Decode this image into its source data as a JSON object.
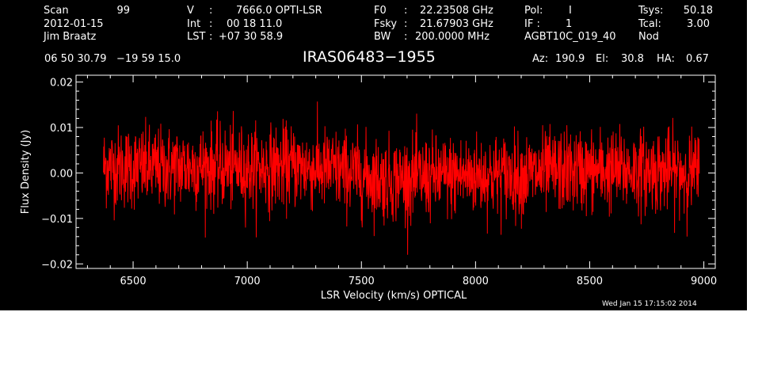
{
  "header": {
    "scan_label": "Scan",
    "scan_value": "99",
    "date": "2012-01-15",
    "observer": "Jim Braatz",
    "v_label": "V",
    "v_sep": ":",
    "v_value": "7666.0 OPTI-LSR",
    "int_label": "Int",
    "int_sep": ":",
    "int_value": "00 18 11.0",
    "lst_label": "LST",
    "lst_sep": ":",
    "lst_value": "+07 30 58.9",
    "f0_label": "F0",
    "f0_sep": ":",
    "f0_value": "22.23508 GHz",
    "fsky_label": "Fsky",
    "fsky_sep": ":",
    "fsky_value": "21.67903 GHz",
    "bw_label": "BW",
    "bw_sep": ":",
    "bw_value": "200.0000 MHz",
    "pol_label": "Pol:",
    "pol_value": "I",
    "if_label": "IF :",
    "if_value": "1",
    "project": "AGBT10C_019_40",
    "tsys_label": "Tsys:",
    "tsys_value": "50.18",
    "tcal_label": "Tcal:",
    "tcal_value": "3.00",
    "proc": "Nod",
    "coords": "06 50 30.79   −19 59 15.0",
    "source": "IRAS06483−1955",
    "az_label": "Az:",
    "az_value": "190.9",
    "el_label": "El:",
    "el_value": "30.8",
    "ha_label": "HA:",
    "ha_value": "0.67",
    "timestamp": "Wed Jan 15 17:15:02 2014"
  },
  "chart_data": {
    "type": "line",
    "title": "IRAS06483−1955",
    "xlabel": "LSR Velocity (km/s) OPTICAL",
    "ylabel": "Flux Density (Jy)",
    "xlim": [
      6250,
      9050
    ],
    "ylim": [
      -0.021,
      0.0215
    ],
    "xticks": [
      6500,
      7000,
      7500,
      8000,
      8500,
      9000
    ],
    "xtick_labels": [
      "6500",
      "7000",
      "7500",
      "8000",
      "8500",
      "9000"
    ],
    "yticks": [
      -0.02,
      -0.01,
      0.0,
      0.01,
      0.02
    ],
    "ytick_labels": [
      "−0.02",
      "−0.01",
      "0.00",
      "0.01",
      "0.02"
    ],
    "series": [
      {
        "color": "#ff0000",
        "x_range": [
          6370,
          8980
        ],
        "n_points": 2048,
        "baseline": [
          [
            6370,
            0.0015
          ],
          [
            6600,
            0.001
          ],
          [
            6800,
            0.0015
          ],
          [
            7000,
            0.001
          ],
          [
            7200,
            0.0015
          ],
          [
            7400,
            0.0005
          ],
          [
            7600,
            -0.0015
          ],
          [
            7800,
            -0.001
          ],
          [
            8000,
            -0.0005
          ],
          [
            8200,
            -0.0005
          ],
          [
            8400,
            0.0005
          ],
          [
            8600,
            0.0005
          ],
          [
            8800,
            0.0005
          ],
          [
            8980,
            0.0
          ]
        ],
        "rms": 0.0045,
        "range": [
          -0.018,
          0.0175
        ]
      }
    ],
    "grid": false,
    "legend": "none"
  }
}
